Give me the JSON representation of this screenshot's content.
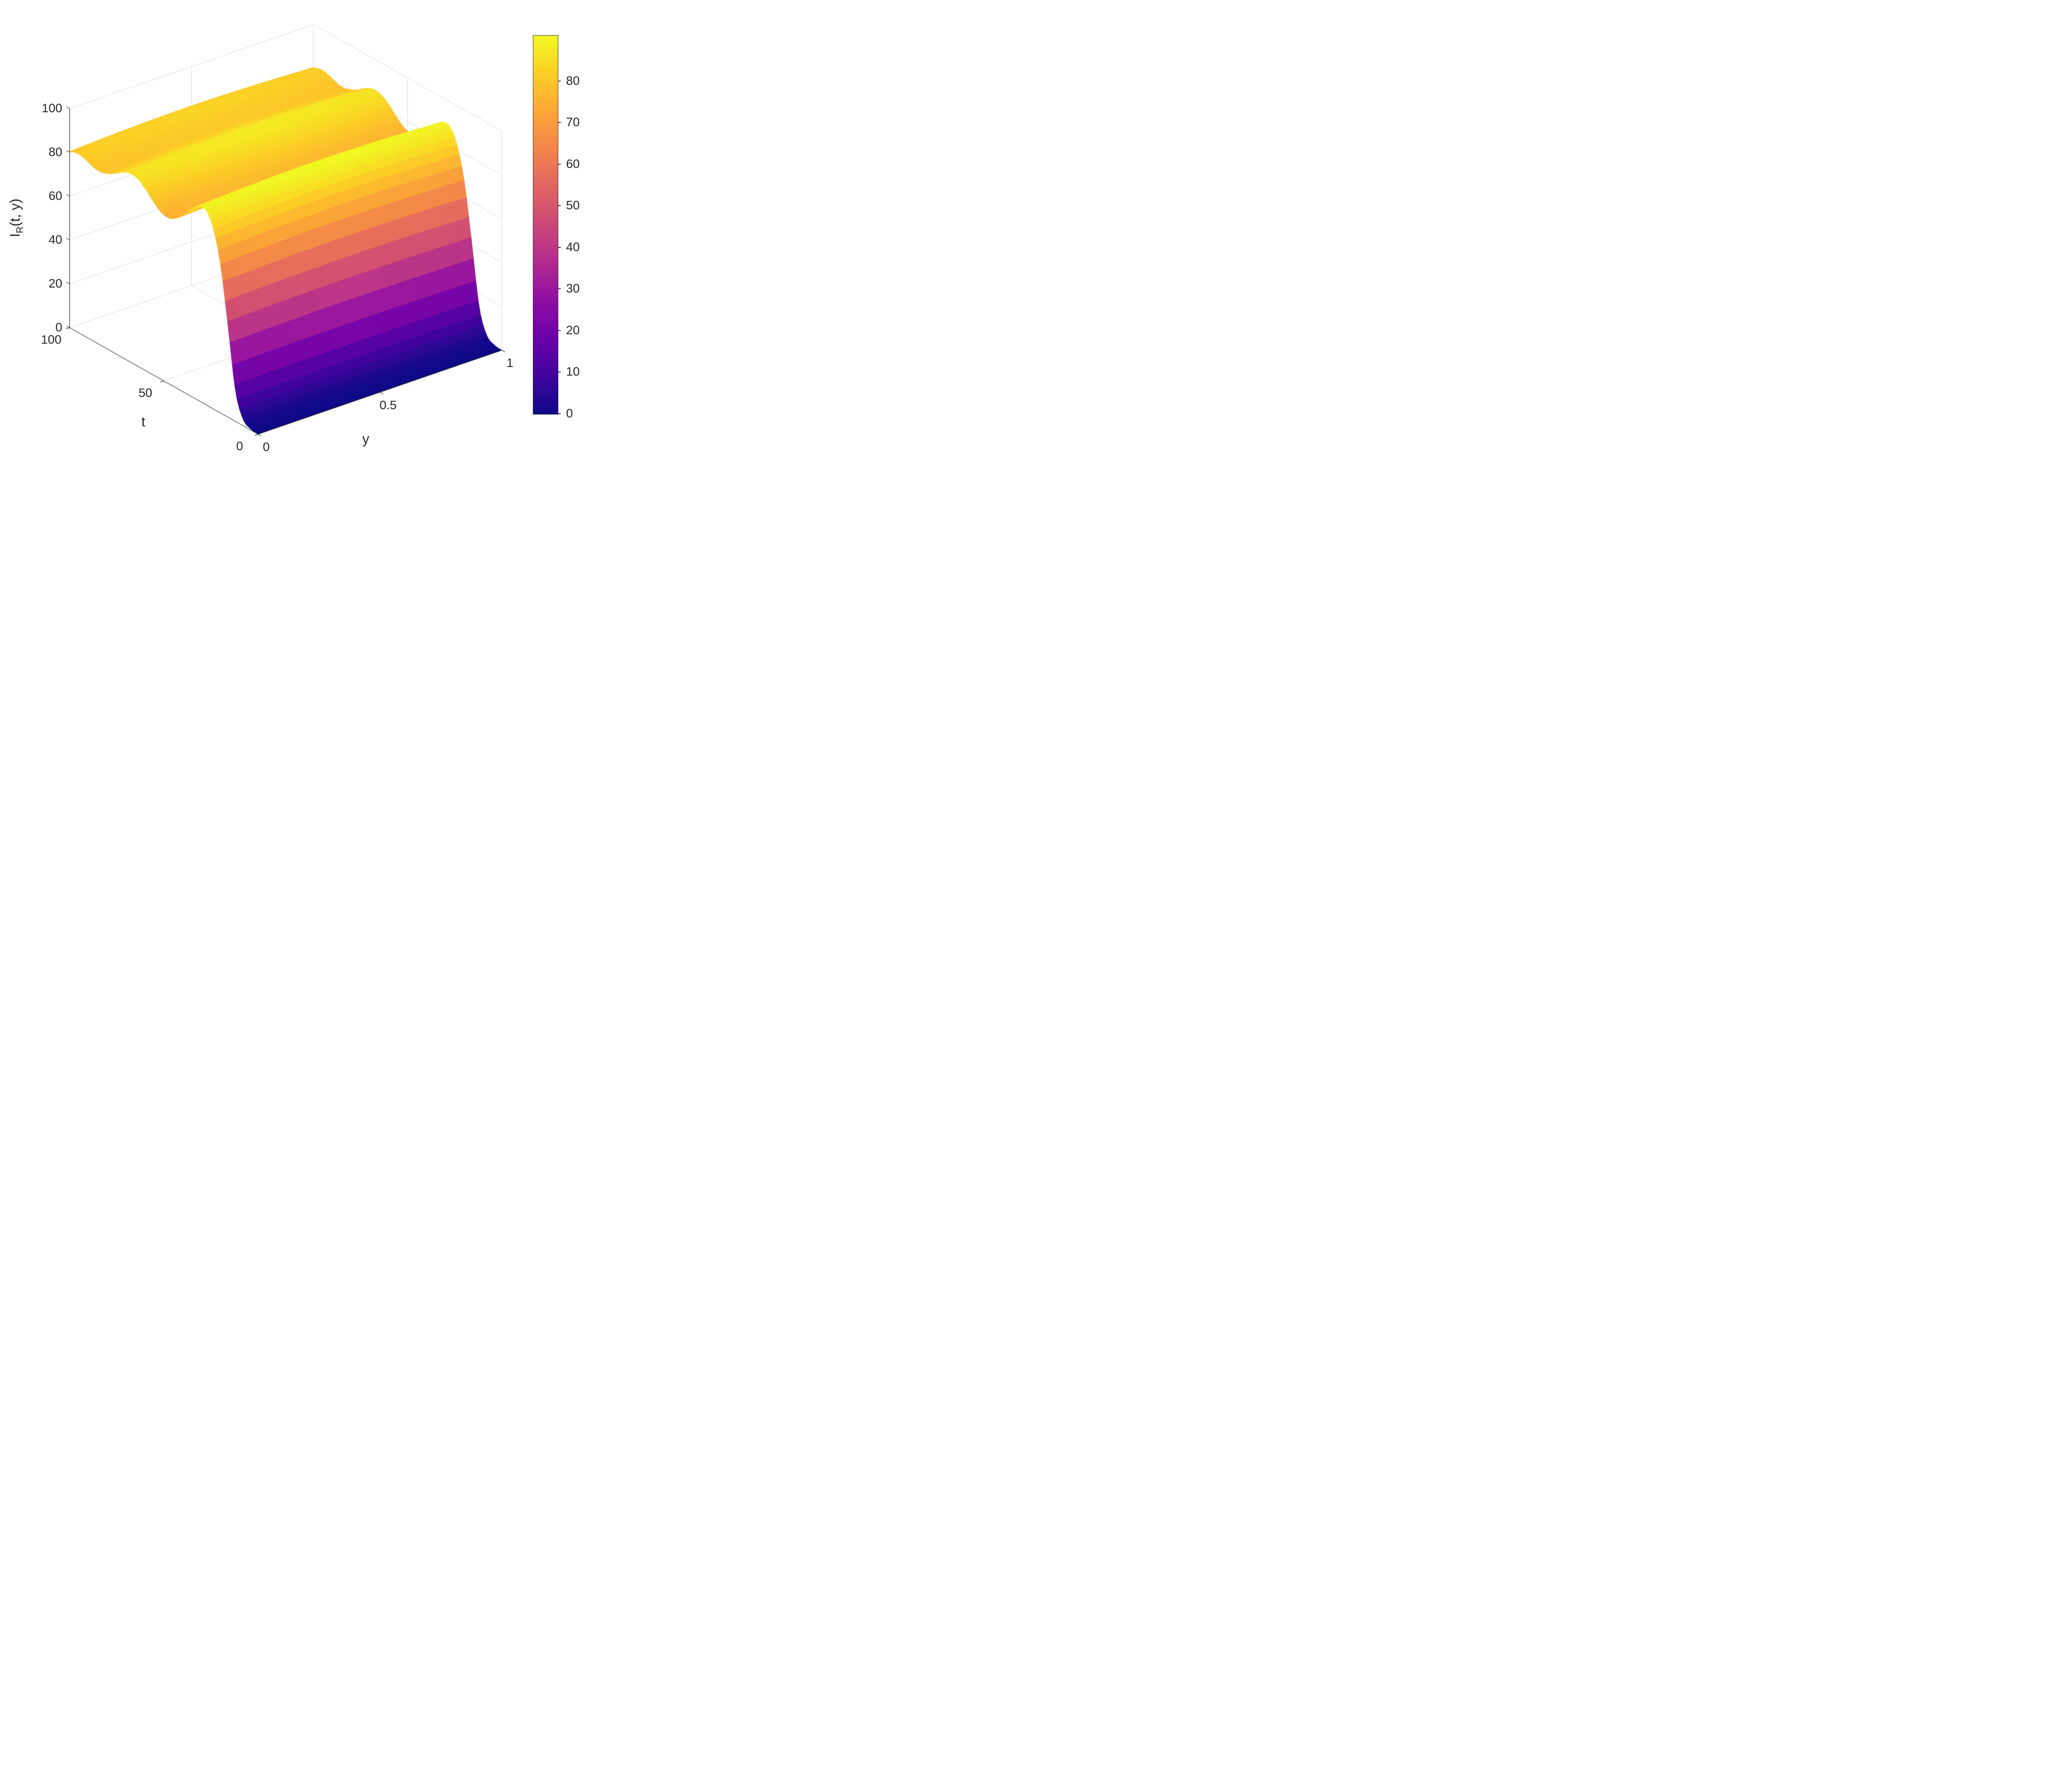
{
  "style": {
    "background": "#ffffff",
    "text_color": "#262626",
    "axis_color": "#262626",
    "grid_color": "#d4d4d4"
  },
  "chart_data": {
    "type": "surface",
    "title": "",
    "xlabel": "y",
    "ylabel": "t",
    "zlabel": {
      "main": "I",
      "sub": "R",
      "rest": "(t, y)"
    },
    "x_range": [
      0,
      1
    ],
    "y_range": [
      0,
      100
    ],
    "z_range": [
      0,
      100
    ],
    "x_ticks": {
      "values": [
        0,
        0.5,
        1
      ],
      "labels": [
        "0",
        "0.5",
        "1"
      ]
    },
    "y_ticks": {
      "values": [
        0,
        50,
        100
      ],
      "labels": [
        "0",
        "50",
        "100"
      ]
    },
    "z_ticks": {
      "values": [
        0,
        20,
        40,
        60,
        80,
        100
      ],
      "labels": [
        "0",
        "20",
        "40",
        "60",
        "80",
        "100"
      ]
    },
    "grid": true,
    "legend": "colorbar-right",
    "colorbar": {
      "clim": [
        0,
        91
      ],
      "tick_values": [
        0,
        10,
        20,
        30,
        40,
        50,
        60,
        70,
        80
      ],
      "tick_labels": [
        "0",
        "10",
        "20",
        "30",
        "40",
        "50",
        "60",
        "70",
        "80"
      ]
    },
    "colormap": {
      "name": "plasma",
      "stops": [
        [
          0.0,
          "#0d0887"
        ],
        [
          0.1,
          "#41049d"
        ],
        [
          0.2,
          "#6a00a8"
        ],
        [
          0.3,
          "#8f0da4"
        ],
        [
          0.4,
          "#b12a90"
        ],
        [
          0.5,
          "#cc4778"
        ],
        [
          0.6,
          "#e16462"
        ],
        [
          0.7,
          "#f2844b"
        ],
        [
          0.8,
          "#fca636"
        ],
        [
          0.9,
          "#fcce25"
        ],
        [
          1.0,
          "#f0f921"
        ]
      ]
    },
    "surface_model": {
      "description": "I_R(t,y) ~= A(t) * g(y): sigmoidal rise from 0 near t=0 with damped oscillation settling near 80, nearly uniform in y with a slight mid-domain dome",
      "A_of_t": {
        "t": [
          0,
          4,
          8,
          12,
          16,
          20,
          24,
          28,
          32,
          36,
          40,
          44,
          48,
          52,
          56,
          60,
          64,
          68,
          72,
          76,
          80,
          84,
          88,
          92,
          96,
          100
        ],
        "values": [
          0,
          0.5,
          3,
          14,
          42,
          68,
          83,
          89,
          88.5,
          85,
          80.5,
          77,
          75.5,
          76.5,
          79.5,
          83,
          85.5,
          86,
          84.5,
          82,
          80,
          79,
          79.5,
          81,
          81.5,
          80.5
        ]
      },
      "g_of_y": {
        "y": [
          0,
          0.1,
          0.2,
          0.3,
          0.4,
          0.5,
          0.6,
          0.7,
          0.8,
          0.9,
          1.0
        ],
        "values": [
          1.0,
          1.006,
          1.012,
          1.016,
          1.019,
          1.02,
          1.019,
          1.016,
          1.012,
          1.006,
          1.0
        ]
      },
      "render_grid": {
        "nt": 81,
        "ny": 41
      }
    }
  }
}
